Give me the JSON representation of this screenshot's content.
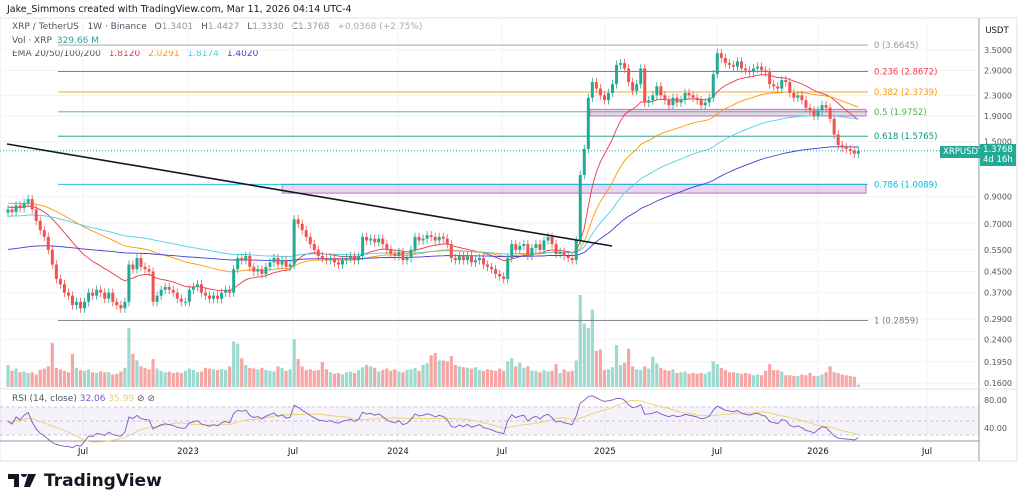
{
  "header": {
    "attribution": "Jake_Simmons created with TradingView.com, Mar 11, 2026 04:14 UTC-4"
  },
  "legend": {
    "symbol": "XRP / TetherUS · 1W · Binance",
    "o_label": "O",
    "open": "1.3401",
    "h_label": "H",
    "high": "1.4427",
    "l_label": "L",
    "low": "1.3330",
    "c_label": "C",
    "close": "1.3768",
    "change": "+0.0368 (+2.75%)",
    "vol_label": "Vol · XRP",
    "vol_value": "329.66 M",
    "ema_label": "EMA 20/50/100/200",
    "ema_values": [
      "1.8120",
      "2.0291",
      "1.8174",
      "1.4020"
    ],
    "ema_colors": [
      "#f23645",
      "#ff9800",
      "#4dd0e1",
      "#3f3fd1"
    ]
  },
  "rsi": {
    "label": "RSI (14, close)",
    "value": "32.06",
    "ma_value": "35.99",
    "axis_labels": [
      "80.00",
      "40.00"
    ],
    "line_color": "#7e57c2",
    "ma_color": "#e8d26a"
  },
  "price_tag": {
    "symbol": "XRPUSDT",
    "price": "1.3768",
    "countdown": "4d 16h",
    "color": "#22ab94"
  },
  "axis": {
    "currency": "USDT",
    "price_labels": [
      "3.5000",
      "2.9000",
      "2.3000",
      "1.9000",
      "1.5000",
      "0.9000",
      "0.7000",
      "0.5500",
      "0.4500",
      "0.3700",
      "0.2900",
      "0.2400",
      "0.1950",
      "0.1600"
    ],
    "time_labels": [
      "Jul",
      "2023",
      "Jul",
      "2024",
      "Jul",
      "2025",
      "Jul",
      "2026",
      "Jul"
    ]
  },
  "logo": {
    "text": "TradingView"
  },
  "chart_data": {
    "type": "candlestick",
    "interval": "1W",
    "scale": "log",
    "ylim": [
      0.16,
      3.7
    ],
    "colors": {
      "up": "#22ab94",
      "down": "#ef5350"
    },
    "fib_levels": [
      {
        "label": "0 (3.6645)",
        "ratio": 0,
        "price": 3.6645,
        "color": "#9598a1"
      },
      {
        "label": "0.236 (2.8672)",
        "ratio": 0.236,
        "price": 2.8672,
        "color": "#f23645"
      },
      {
        "label": "0.382 (2.3739)",
        "ratio": 0.382,
        "price": 2.3739,
        "color": "#ff9800"
      },
      {
        "label": "0.5 (1.9752)",
        "ratio": 0.5,
        "price": 1.9752,
        "color": "#4caf50"
      },
      {
        "label": "0.618 (1.5765)",
        "ratio": 0.618,
        "price": 1.5765,
        "color": "#089981"
      },
      {
        "label": "0.786 (1.0089)",
        "ratio": 0.786,
        "price": 1.0089,
        "color": "#00bcd4"
      },
      {
        "label": "1 (0.2859)",
        "ratio": 1,
        "price": 0.2859,
        "color": "#787b86"
      }
    ],
    "zones": [
      {
        "price_top": 1.0089,
        "price_bottom": 0.93,
        "color": "#9c27b0"
      },
      {
        "price_top": 2.02,
        "price_bottom": 1.9,
        "color": "#9c27b0"
      }
    ],
    "closes": [
      0.8,
      0.78,
      0.83,
      0.81,
      0.85,
      0.88,
      0.8,
      0.72,
      0.66,
      0.62,
      0.55,
      0.48,
      0.42,
      0.4,
      0.37,
      0.36,
      0.33,
      0.34,
      0.32,
      0.34,
      0.37,
      0.36,
      0.38,
      0.37,
      0.35,
      0.37,
      0.34,
      0.33,
      0.32,
      0.34,
      0.48,
      0.46,
      0.51,
      0.47,
      0.46,
      0.45,
      0.34,
      0.36,
      0.38,
      0.39,
      0.38,
      0.37,
      0.35,
      0.34,
      0.34,
      0.38,
      0.39,
      0.4,
      0.37,
      0.36,
      0.35,
      0.36,
      0.35,
      0.37,
      0.38,
      0.37,
      0.46,
      0.51,
      0.5,
      0.52,
      0.47,
      0.45,
      0.46,
      0.44,
      0.47,
      0.49,
      0.51,
      0.48,
      0.5,
      0.47,
      0.48,
      0.73,
      0.7,
      0.66,
      0.62,
      0.58,
      0.55,
      0.52,
      0.51,
      0.5,
      0.51,
      0.49,
      0.48,
      0.5,
      0.51,
      0.52,
      0.5,
      0.52,
      0.62,
      0.6,
      0.61,
      0.59,
      0.61,
      0.58,
      0.55,
      0.53,
      0.52,
      0.54,
      0.5,
      0.51,
      0.55,
      0.62,
      0.6,
      0.61,
      0.63,
      0.62,
      0.6,
      0.62,
      0.61,
      0.58,
      0.51,
      0.5,
      0.52,
      0.5,
      0.52,
      0.49,
      0.5,
      0.51,
      0.48,
      0.47,
      0.46,
      0.44,
      0.43,
      0.42,
      0.51,
      0.58,
      0.55,
      0.57,
      0.58,
      0.52,
      0.56,
      0.58,
      0.55,
      0.6,
      0.62,
      0.58,
      0.53,
      0.54,
      0.52,
      0.51,
      0.5,
      0.6,
      1.1,
      1.4,
      2.25,
      2.6,
      2.45,
      2.3,
      2.2,
      2.35,
      2.55,
      3.05,
      3.1,
      2.95,
      2.6,
      2.4,
      2.55,
      2.95,
      2.15,
      2.2,
      2.3,
      2.5,
      2.3,
      2.2,
      2.1,
      2.25,
      2.15,
      2.2,
      2.35,
      2.3,
      2.25,
      2.2,
      2.1,
      2.15,
      2.25,
      2.8,
      3.4,
      3.25,
      3.1,
      3.05,
      3.0,
      3.15,
      2.95,
      2.9,
      2.85,
      2.95,
      3.0,
      2.9,
      2.85,
      2.55,
      2.5,
      2.45,
      2.65,
      2.6,
      2.35,
      2.25,
      2.3,
      2.2,
      2.05,
      2.0,
      1.9,
      2.0,
      2.1,
      2.05,
      1.85,
      1.6,
      1.45,
      1.42,
      1.4,
      1.38,
      1.34,
      1.3768
    ],
    "volumes_m": [
      3000,
      2200,
      2500,
      2000,
      2100,
      1900,
      2000,
      1700,
      2300,
      2500,
      2800,
      6000,
      2600,
      2400,
      2200,
      2000,
      4500,
      2600,
      2300,
      2200,
      2400,
      2000,
      1900,
      2100,
      2000,
      2000,
      1700,
      1800,
      2100,
      2600,
      8000,
      4500,
      3600,
      2800,
      2600,
      2400,
      3800,
      2500,
      2200,
      2000,
      2100,
      1900,
      2000,
      1900,
      2200,
      2500,
      2300,
      2000,
      2100,
      2600,
      2500,
      2400,
      2300,
      2400,
      2300,
      2800,
      6200,
      5900,
      3900,
      3000,
      2600,
      2500,
      2400,
      2600,
      2300,
      2200,
      2100,
      2800,
      2600,
      2200,
      2400,
      6500,
      3800,
      2800,
      2300,
      2400,
      2200,
      2300,
      3400,
      2400,
      2000,
      1800,
      1900,
      1700,
      2000,
      2100,
      1900,
      2300,
      2700,
      3000,
      2800,
      2600,
      2100,
      2300,
      2500,
      2200,
      2400,
      2100,
      2000,
      2300,
      2400,
      2600,
      2200,
      3000,
      3200,
      4300,
      4600,
      3600,
      3600,
      3500,
      4200,
      3000,
      2800,
      2700,
      2600,
      2500,
      2700,
      2300,
      2200,
      2400,
      2300,
      2200,
      2500,
      2200,
      3500,
      3900,
      2800,
      3300,
      2600,
      2800,
      2200,
      2200,
      2000,
      2300,
      2100,
      2200,
      3100,
      1900,
      2400,
      2100,
      2200,
      3600,
      12500,
      8600,
      8000,
      10500,
      4900,
      5100,
      2300,
      2400,
      2700,
      5700,
      3000,
      3300,
      5200,
      2800,
      2400,
      2300,
      2800,
      2500,
      4100,
      3200,
      2600,
      2300,
      2200,
      2400,
      1900,
      2000,
      2100,
      1800,
      1900,
      1800,
      1900,
      1800,
      2100,
      3500,
      3100,
      2600,
      2300,
      2000,
      2000,
      1900,
      1800,
      1900,
      1800,
      1600,
      1700,
      1600,
      2200,
      3100,
      2300,
      2300,
      2100,
      1600,
      1600,
      1500,
      1500,
      1700,
      1600,
      1900,
      1500,
      1500,
      1700,
      2000,
      2800,
      2000,
      1900,
      1700,
      1600,
      1500,
      1400,
      329.66
    ]
  }
}
